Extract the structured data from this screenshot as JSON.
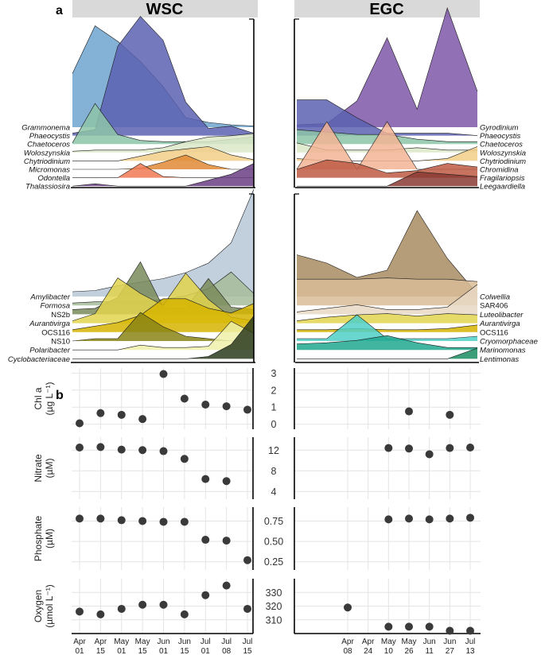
{
  "figure": {
    "panel_a": "a",
    "panel_b": "b"
  },
  "strips": {
    "left": "WSC",
    "right": "EGC"
  },
  "colors": {
    "strip_bg": "#d9d9d9",
    "grid": "#e4e4e4",
    "point": "#3a3a3a",
    "Grammonema": "#6fa3cf",
    "Phaeocystis": "#5b62b0",
    "Chaetoceros": "#8dc4a8",
    "Woloszynskia": "#dce8c8",
    "Chytriodinium": "#f2cf8a",
    "Micromonas": "#e08a35",
    "Odontella": "#f07a55",
    "Thalassiosira": "#6a3e82",
    "Gyrodinium": "#7f57a8",
    "Chromidina": "#f2b495",
    "Fragilariopsis": "#bd5a44",
    "Leegaardiella": "#8a3a33",
    "Amylibacter": "#b7c7d7",
    "Formosa": "#a6bc9a",
    "NS2b": "#7a8b5a",
    "Aurantivirga": "#e2d44e",
    "OCS116": "#d6b400",
    "NS10": "#8a8414",
    "Polaribacter": "#eef0a8",
    "Cyclobacteriaceae": "#2c3b1e",
    "Colwellia": "#a88c61",
    "SAR406": "#d8bc98",
    "Luteolibacter": "#e8d8c4",
    "Cryomorphaceae": "#4fcfc8",
    "Marinomonas": "#21a890",
    "Lentimonas": "#1a8c62"
  },
  "chart_data": [
    {
      "type": "area",
      "panel": "a",
      "facet": "WSC",
      "group": "eukaryotes",
      "title": "WSC",
      "x": [
        "Apr 01",
        "Apr 15",
        "May 01",
        "May 15",
        "Jun 01",
        "Jun 15",
        "Jul 01",
        "Jul 08",
        "Jul 15"
      ],
      "series": [
        {
          "name": "Grammonema",
          "italic": true,
          "values": [
            0.45,
            0.85,
            0.72,
            0.55,
            0.34,
            0.08,
            0.04,
            0.02,
            0.01
          ]
        },
        {
          "name": "Phaeocystis",
          "italic": true,
          "values": [
            0.02,
            0.05,
            0.75,
            1.0,
            0.8,
            0.28,
            0.06,
            0.08,
            0.02
          ]
        },
        {
          "name": "Chaetoceros",
          "italic": true,
          "values": [
            0.01,
            0.34,
            0.08,
            0.03,
            0.02,
            0.02,
            0.02,
            0.04,
            0.06
          ]
        },
        {
          "name": "Woloszynskia",
          "italic": true,
          "values": [
            0.01,
            0.02,
            0.02,
            0.02,
            0.04,
            0.09,
            0.13,
            0.14,
            0.16
          ]
        },
        {
          "name": "Chytriodinium",
          "italic": true,
          "values": [
            0.0,
            0.0,
            0.0,
            0.04,
            0.08,
            0.1,
            0.12,
            0.05,
            0.01
          ]
        },
        {
          "name": "Micromonas",
          "italic": true,
          "values": [
            0.0,
            0.0,
            0.0,
            0.01,
            0.06,
            0.12,
            0.04,
            0.0,
            0.0
          ]
        },
        {
          "name": "Odontella",
          "italic": true,
          "values": [
            0.0,
            0.0,
            0.0,
            0.12,
            0.01,
            0.0,
            0.0,
            0.0,
            0.0
          ]
        },
        {
          "name": "Thalassiosira",
          "italic": true,
          "values": [
            0.0,
            0.02,
            0.0,
            0.0,
            0.0,
            0.0,
            0.05,
            0.1,
            0.19
          ]
        }
      ]
    },
    {
      "type": "area",
      "panel": "a",
      "facet": "EGC",
      "group": "eukaryotes",
      "title": "EGC",
      "x": [
        "Apr 08",
        "Apr 24",
        "May 10",
        "May 26",
        "Jun 11",
        "Jun 27",
        "Jul 13"
      ],
      "series": [
        {
          "name": "Gyrodinium",
          "italic": true,
          "values": [
            0.02,
            0.03,
            0.22,
            0.75,
            0.15,
            1.0,
            0.3
          ]
        },
        {
          "name": "Phaeocystis",
          "italic": true,
          "values": [
            0.3,
            0.3,
            0.15,
            0.02,
            0.02,
            0.02,
            0.0
          ]
        },
        {
          "name": "Chaetoceros",
          "italic": true,
          "values": [
            0.12,
            0.1,
            0.08,
            0.08,
            0.04,
            0.02,
            0.02
          ]
        },
        {
          "name": "Woloszynskia",
          "italic": true,
          "values": [
            0.08,
            0.02,
            0.02,
            0.02,
            0.04,
            0.02,
            0.02
          ]
        },
        {
          "name": "Chytriodinium",
          "italic": true,
          "values": [
            0.02,
            0.0,
            0.0,
            0.0,
            0.0,
            0.02,
            0.12
          ]
        },
        {
          "name": "Chromidina",
          "italic": true,
          "values": [
            0.0,
            0.4,
            0.0,
            0.4,
            0.0,
            0.0,
            0.0
          ]
        },
        {
          "name": "Fragilariopsis",
          "italic": true,
          "values": [
            0.07,
            0.15,
            0.12,
            0.04,
            0.06,
            0.12,
            0.09
          ]
        },
        {
          "name": "Leegaardiella",
          "italic": true,
          "values": [
            0.0,
            0.0,
            0.0,
            0.0,
            0.12,
            0.1,
            0.08
          ]
        }
      ]
    },
    {
      "type": "area",
      "panel": "a",
      "facet": "WSC",
      "group": "bacteria",
      "x": [
        "Apr 01",
        "Apr 15",
        "May 01",
        "May 15",
        "Jun 01",
        "Jun 15",
        "Jul 01",
        "Jul 08",
        "Jul 15"
      ],
      "series": [
        {
          "name": "Amylibacter",
          "italic": true,
          "values": [
            0.04,
            0.05,
            0.09,
            0.12,
            0.15,
            0.2,
            0.28,
            0.45,
            0.9
          ]
        },
        {
          "name": "Formosa",
          "italic": true,
          "values": [
            0.02,
            0.03,
            0.03,
            0.03,
            0.05,
            0.08,
            0.14,
            0.28,
            0.1
          ]
        },
        {
          "name": "NS2b",
          "italic": false,
          "values": [
            0.04,
            0.05,
            0.14,
            0.44,
            0.06,
            0.05,
            0.3,
            0.06,
            0.04
          ]
        },
        {
          "name": "Aurantivirga",
          "italic": true,
          "values": [
            0.02,
            0.08,
            0.38,
            0.25,
            0.15,
            0.42,
            0.2,
            0.05,
            0.02
          ]
        },
        {
          "name": "OCS116",
          "italic": false,
          "values": [
            0.02,
            0.05,
            0.08,
            0.14,
            0.28,
            0.28,
            0.2,
            0.16,
            0.24
          ]
        },
        {
          "name": "NS10",
          "italic": false,
          "values": [
            0.0,
            0.02,
            0.02,
            0.24,
            0.12,
            0.04,
            0.02,
            0.0,
            0.0
          ]
        },
        {
          "name": "Polaribacter",
          "italic": true,
          "values": [
            0.0,
            0.0,
            0.0,
            0.04,
            0.02,
            0.02,
            0.03,
            0.24,
            0.14
          ]
        },
        {
          "name": "Cyclobacteriaceae",
          "italic": true,
          "values": [
            0.0,
            0.0,
            0.0,
            0.0,
            0.0,
            0.0,
            0.02,
            0.12,
            0.36
          ]
        }
      ]
    },
    {
      "type": "area",
      "panel": "a",
      "facet": "EGC",
      "group": "bacteria",
      "x": [
        "Apr 08",
        "Apr 24",
        "May 10",
        "May 26",
        "Jun 11",
        "Jun 27",
        "Jul 13"
      ],
      "series": [
        {
          "name": "Colwellia",
          "italic": true,
          "values": [
            0.35,
            0.28,
            0.16,
            0.22,
            0.72,
            0.32,
            0.02
          ]
        },
        {
          "name": "SAR406",
          "italic": false,
          "values": [
            0.22,
            0.22,
            0.22,
            0.23,
            0.22,
            0.22,
            0.2
          ]
        },
        {
          "name": "Luteolibacter",
          "italic": true,
          "values": [
            0.02,
            0.05,
            0.08,
            0.04,
            0.04,
            0.06,
            0.25
          ]
        },
        {
          "name": "Aurantivirga",
          "italic": true,
          "values": [
            0.02,
            0.05,
            0.07,
            0.08,
            0.06,
            0.08,
            0.07
          ]
        },
        {
          "name": "OCS116",
          "italic": false,
          "values": [
            0.02,
            0.02,
            0.03,
            0.02,
            0.02,
            0.03,
            0.06
          ]
        },
        {
          "name": "Cryomorphaceae",
          "italic": true,
          "values": [
            0.02,
            0.02,
            0.22,
            0.02,
            0.02,
            0.02,
            0.04
          ]
        },
        {
          "name": "Marinomonas",
          "italic": true,
          "values": [
            0.05,
            0.06,
            0.08,
            0.12,
            0.06,
            0.02,
            0.02
          ]
        },
        {
          "name": "Lentimonas",
          "italic": true,
          "values": [
            0.0,
            0.0,
            0.0,
            0.0,
            0.0,
            0.0,
            0.09
          ]
        }
      ]
    },
    {
      "type": "scatter",
      "panel": "b",
      "x_wsc": [
        "Apr 01",
        "Apr 15",
        "May 01",
        "May 15",
        "Jun 01",
        "Jun 15",
        "Jul 01",
        "Jul 08",
        "Jul 15"
      ],
      "x_egc": [
        "Apr 08",
        "Apr 24",
        "May 10",
        "May 26",
        "Jun 11",
        "Jun 27",
        "Jul 13"
      ],
      "rows": [
        {
          "name": "chl",
          "ylabel_lines": [
            "Chl a",
            "(µg L⁻¹)"
          ],
          "ylim": [
            -0.3,
            3.3
          ],
          "ticks": [
            "3",
            "2",
            "1",
            "0"
          ],
          "tick_values": [
            3,
            2,
            1,
            0
          ],
          "wsc": [
            0.05,
            0.65,
            0.55,
            0.3,
            2.95,
            1.5,
            1.15,
            1.05,
            0.85
          ],
          "egc": [
            null,
            null,
            null,
            0.75,
            null,
            0.55,
            null
          ]
        },
        {
          "name": "nitrate",
          "ylabel_lines": [
            "Nitrate",
            "(µM)"
          ],
          "ylim": [
            2.5,
            14.5
          ],
          "ticks": [
            "12",
            "8",
            "4"
          ],
          "tick_values": [
            12,
            8,
            4
          ],
          "wsc": [
            12.5,
            12.6,
            12.1,
            12.0,
            11.8,
            10.3,
            6.4,
            6.0,
            null
          ],
          "egc": [
            null,
            null,
            12.4,
            12.3,
            11.2,
            12.4,
            12.5
          ]
        },
        {
          "name": "phosphate",
          "ylabel_lines": [
            "Phosphate",
            "(µM)"
          ],
          "ylim": [
            0.15,
            0.92
          ],
          "ticks": [
            "0.75",
            "0.50",
            "0.25"
          ],
          "tick_values": [
            0.75,
            0.5,
            0.25
          ],
          "wsc": [
            0.78,
            0.78,
            0.76,
            0.75,
            0.74,
            0.74,
            0.52,
            0.51,
            0.27
          ],
          "egc": [
            null,
            null,
            0.77,
            0.78,
            0.77,
            0.78,
            0.79
          ]
        },
        {
          "name": "oxygen",
          "ylabel_lines": [
            "Oxygen",
            "(µmol L⁻¹)"
          ],
          "ylim": [
            300,
            340
          ],
          "ticks": [
            "330",
            "320",
            "310"
          ],
          "tick_values": [
            330,
            320,
            310
          ],
          "wsc": [
            316,
            314,
            318,
            321,
            321,
            314,
            328,
            335,
            318
          ],
          "egc": [
            319,
            null,
            305,
            305,
            305,
            302,
            302
          ]
        }
      ]
    }
  ]
}
